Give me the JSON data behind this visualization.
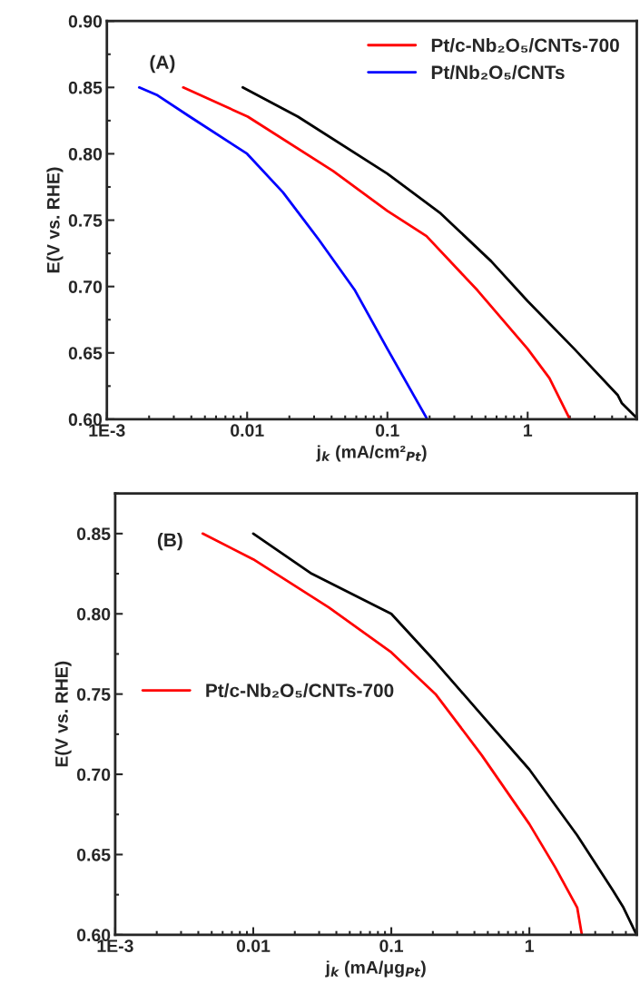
{
  "chart_data": [
    {
      "type": "line",
      "annotations": [
        "(A)"
      ],
      "xlabel": "j$_{k}$ (mA/cm²$_{Pt}$)",
      "ylabel": "E(V vs. RHE)",
      "log": "x",
      "legend": "top right",
      "line_style": "solid",
      "xlim": [
        0.001,
        6
      ],
      "xticks": [
        {
          "value": 0.001,
          "label": "1E-3"
        },
        0.01,
        0.1,
        1
      ],
      "ylim": [
        0.6,
        0.9
      ],
      "yticks": [
        {
          "value": 0.6,
          "label": "0.60"
        },
        0.65,
        {
          "value": 0.7,
          "label": "0.70"
        },
        0.75,
        {
          "value": 0.8,
          "label": "0.80"
        },
        0.85,
        {
          "value": 0.9,
          "label": "0.90"
        }
      ],
      "series": [
        {
          "color": "#000000",
          "x": [
            0.0093,
            0.023,
            0.1,
            0.24,
            0.55,
            1.0,
            2.15,
            4.4,
            4.7,
            6.0
          ],
          "values": [
            0.85,
            0.828,
            0.785,
            0.755,
            0.719,
            0.689,
            0.653,
            0.618,
            0.612,
            0.601
          ]
        },
        {
          "name": "Pt/c-Nb₂O₅/CNTs-700",
          "color": "#ff0000",
          "x": [
            0.0035,
            0.0101,
            0.041,
            0.1,
            0.19,
            0.44,
            1.0,
            1.43,
            2.0
          ],
          "values": [
            0.85,
            0.828,
            0.787,
            0.757,
            0.738,
            0.697,
            0.653,
            0.631,
            0.6
          ]
        },
        {
          "name": "Pt/Nb₂O₅/CNTs",
          "color": "#0000ff",
          "x": [
            0.0017,
            0.0023,
            0.0039,
            0.01,
            0.018,
            0.0326,
            0.0588,
            0.1,
            0.19
          ],
          "values": [
            0.85,
            0.844,
            0.828,
            0.8,
            0.771,
            0.735,
            0.697,
            0.653,
            0.601
          ]
        }
      ]
    },
    {
      "type": "line",
      "annotations": [
        "(B)"
      ],
      "xlabel": "j$_{k}$ (mA/μg$_{Pt}$)",
      "ylabel": "E(V vs. RHE)",
      "log": "x",
      "legend": "left",
      "line_style": "solid",
      "xlim": [
        0.001,
        6
      ],
      "xticks": [
        {
          "value": 0.001,
          "label": "1E-3"
        },
        0.01,
        0.1,
        1
      ],
      "ylim": [
        0.6,
        0.875
      ],
      "yticks": [
        {
          "value": 0.6,
          "label": "0.60"
        },
        0.65,
        {
          "value": 0.7,
          "label": "0.70"
        },
        0.75,
        {
          "value": 0.8,
          "label": "0.80"
        },
        0.85
      ],
      "series": [
        {
          "color": "#000000",
          "x": [
            0.01,
            0.0265,
            0.1,
            0.209,
            0.451,
            1.0,
            2.22,
            4.0,
            4.8,
            5.9
          ],
          "values": [
            0.85,
            0.825,
            0.8,
            0.77,
            0.737,
            0.703,
            0.662,
            0.628,
            0.617,
            0.601
          ]
        },
        {
          "name": "Pt/c-Nb₂O₅/CNTs-700",
          "color": "#ff0000",
          "x": [
            0.0043,
            0.01,
            0.0352,
            0.1,
            0.209,
            0.451,
            1.0,
            1.54,
            2.22,
            2.4
          ],
          "values": [
            0.85,
            0.834,
            0.804,
            0.776,
            0.75,
            0.712,
            0.669,
            0.642,
            0.617,
            0.6
          ]
        }
      ]
    }
  ]
}
